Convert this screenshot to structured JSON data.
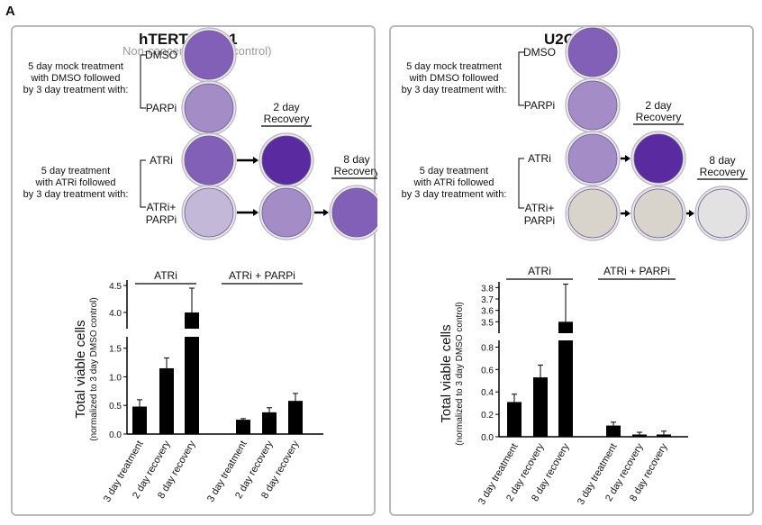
{
  "panel_letter": "A",
  "left": {
    "title": "hTERT RPE-1",
    "subtitle": "Non-cancer cell line (control)"
  },
  "right": {
    "title": "U2OS"
  },
  "schematic": {
    "mock_text": [
      "5 day mock treatment",
      "with DMSO followed",
      "by 3 day treatment with:"
    ],
    "atri_text": [
      "5 day treatment",
      "with ATRi followed",
      "by 3 day treatment with:"
    ],
    "dmso": "DMSO",
    "parpi": "PARPi",
    "atri": "ATRi",
    "atri_parpi": [
      "ATRi+",
      "PARPi"
    ],
    "recovery_2": [
      "2 day",
      "Recovery"
    ],
    "recovery_8": [
      "8 day",
      "Recovery"
    ]
  },
  "plate_colors": {
    "dense": "#5a2aa0",
    "medium": "#8360b8",
    "light": "#a48cc6",
    "faint": "#c4b8d8",
    "empty": "#d8d4cc",
    "blank": "#e2e2e2"
  },
  "chart_data": [
    {
      "type": "bar",
      "ylabel": "Total viable cells",
      "ylabel_sub": "(normalized to 3 day DMSO control)",
      "groups": [
        "ATRi",
        "ATRi + PARPi"
      ],
      "categories": [
        "3 day treatment",
        "2 day recovery",
        "8 day recovery",
        "3 day treatment",
        "2 day recovery",
        "8 day recovery"
      ],
      "values": [
        0.48,
        1.15,
        4.0,
        0.25,
        0.38,
        0.58
      ],
      "errors": [
        0.12,
        0.18,
        0.45,
        0.02,
        0.08,
        0.13
      ],
      "axis_break": {
        "lower": [
          0,
          1.7
        ],
        "upper": [
          3.7,
          4.6
        ]
      },
      "lower_ticks": [
        "0.0",
        "0.5",
        "1.0",
        "1.5"
      ],
      "upper_ticks": [
        "4.0",
        "4.5"
      ]
    },
    {
      "type": "bar",
      "ylabel": "Total viable cells",
      "ylabel_sub": "(normalized to 3 day DMSO control)",
      "groups": [
        "ATRi",
        "ATRi + PARPi"
      ],
      "categories": [
        "3 day treatment",
        "2 day recovery",
        "8 day recovery",
        "3 day treatment",
        "2 day recovery",
        "8 day recovery"
      ],
      "values": [
        0.31,
        0.53,
        3.5,
        0.1,
        0.02,
        0.02
      ],
      "errors": [
        0.07,
        0.11,
        0.33,
        0.03,
        0.02,
        0.03
      ],
      "axis_break": {
        "lower": [
          0,
          0.86
        ],
        "upper": [
          3.4,
          3.85
        ]
      },
      "lower_ticks": [
        "0.0",
        "0.2",
        "0.4",
        "0.6",
        "0.8"
      ],
      "upper_ticks": [
        "3.5",
        "3.6",
        "3.7",
        "3.8"
      ]
    }
  ]
}
